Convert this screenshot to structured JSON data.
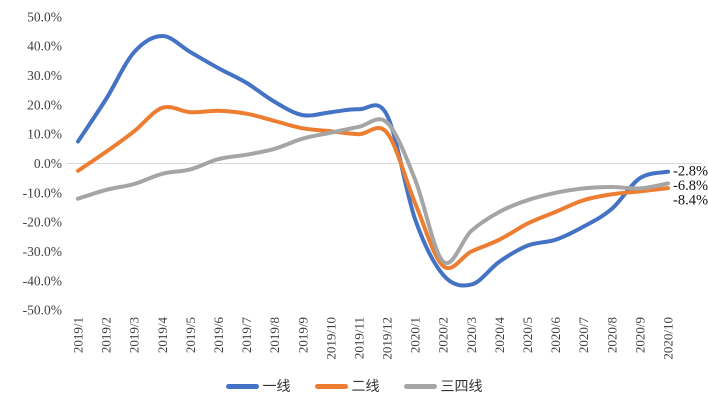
{
  "chart_data": {
    "type": "line",
    "title": "",
    "xlabel": "",
    "ylabel": "",
    "categories": [
      "2019/1",
      "2019/2",
      "2019/3",
      "2019/4",
      "2019/5",
      "2019/6",
      "2019/7",
      "2019/8",
      "2019/9",
      "2019/10",
      "2019/11",
      "2019/12",
      "2020/1",
      "2020/2",
      "2020/3",
      "2020/4",
      "2020/5",
      "2020/6",
      "2020/7",
      "2020/8",
      "2020/9",
      "2020/10"
    ],
    "series": [
      {
        "name": "一线",
        "color": "#4472C4",
        "values": [
          7.5,
          22,
          38,
          43.5,
          38,
          32.5,
          27.5,
          21,
          16.5,
          17.5,
          18.5,
          16.5,
          -19,
          -38,
          -41.3,
          -33.5,
          -28,
          -26,
          -21.5,
          -15.5,
          -5,
          -2.8
        ],
        "end_label": "-2.8%"
      },
      {
        "name": "二线",
        "color": "#ED7D31",
        "values": [
          -2.5,
          4,
          11,
          19,
          17.5,
          18,
          17,
          14.5,
          12,
          11,
          10,
          10.5,
          -13.5,
          -35,
          -30,
          -26,
          -20.5,
          -16.5,
          -12.5,
          -10.5,
          -9.5,
          -8.4
        ],
        "end_label": "-8.4%"
      },
      {
        "name": "三四线",
        "color": "#A5A5A5",
        "values": [
          -12,
          -9,
          -7,
          -3.5,
          -2,
          1.5,
          3,
          5,
          8.5,
          10.5,
          12.5,
          14,
          -5.5,
          -33.5,
          -23,
          -16.5,
          -12.5,
          -10,
          -8.5,
          -8,
          -8.5,
          -6.8
        ],
        "end_label": "-6.8%"
      }
    ],
    "y_axis": {
      "min": -50,
      "max": 50,
      "step": 10,
      "tick_labels": [
        "50.0%",
        "40.0%",
        "30.0%",
        "20.0%",
        "10.0%",
        "0.0%",
        "-10.0%",
        "-20.0%",
        "-30.0%",
        "-40.0%",
        "-50.0%"
      ]
    },
    "grid": "zero-line-only",
    "legend_position": "bottom",
    "legend_labels": [
      "一线",
      "二线",
      "三四线"
    ]
  },
  "colors": {
    "grid_line": "#d9d9d9",
    "tick_text": "#3f3f46",
    "end_label_text": "#111111"
  }
}
